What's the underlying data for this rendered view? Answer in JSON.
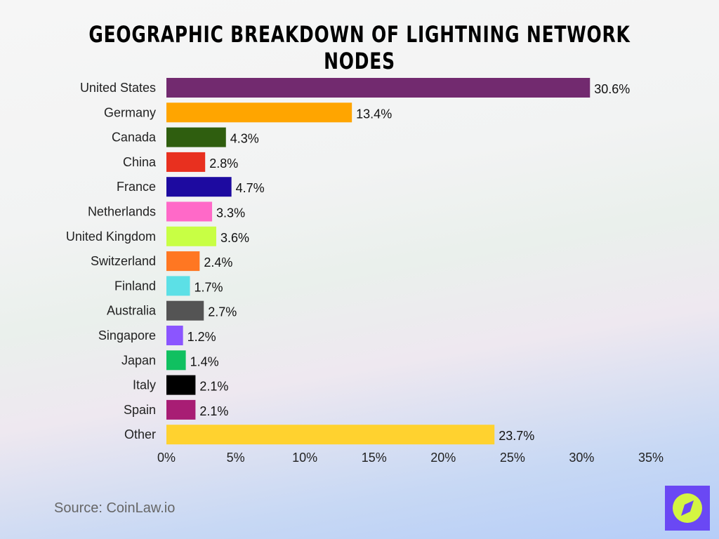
{
  "title": "Geographic Breakdown of Lightning Network Nodes",
  "source": "Source: CoinLaw.io",
  "logo_icon": "compass-icon",
  "chart_data": {
    "type": "bar",
    "orientation": "horizontal",
    "title": "Geographic Breakdown of Lightning Network Nodes",
    "xlabel": "",
    "ylabel": "",
    "xlim": [
      0,
      35
    ],
    "xticks": [
      "0%",
      "5%",
      "10%",
      "15%",
      "20%",
      "25%",
      "30%",
      "35%"
    ],
    "grid": false,
    "categories": [
      "United States",
      "Germany",
      "Canada",
      "China",
      "France",
      "Netherlands",
      "United Kingdom",
      "Switzerland",
      "Finland",
      "Australia",
      "Singapore",
      "Japan",
      "Italy",
      "Spain",
      "Other"
    ],
    "values": [
      30.6,
      13.4,
      4.3,
      2.8,
      4.7,
      3.3,
      3.6,
      2.4,
      1.7,
      2.7,
      1.2,
      1.4,
      2.1,
      2.1,
      23.7
    ],
    "labels": [
      "30.6%",
      "13.4%",
      "4.3%",
      "2.8%",
      "4.7%",
      "3.3%",
      "3.6%",
      "2.4%",
      "1.7%",
      "2.7%",
      "1.2%",
      "1.4%",
      "2.1%",
      "2.1%",
      "23.7%"
    ],
    "colors": [
      "#722a6f",
      "#ffa500",
      "#2f5e0f",
      "#e8301f",
      "#1d0aa0",
      "#ff69c8",
      "#c8ff44",
      "#ff7722",
      "#5ce0e6",
      "#545454",
      "#8b55ff",
      "#10c060",
      "#000000",
      "#a81d74",
      "#ffd22f"
    ]
  }
}
